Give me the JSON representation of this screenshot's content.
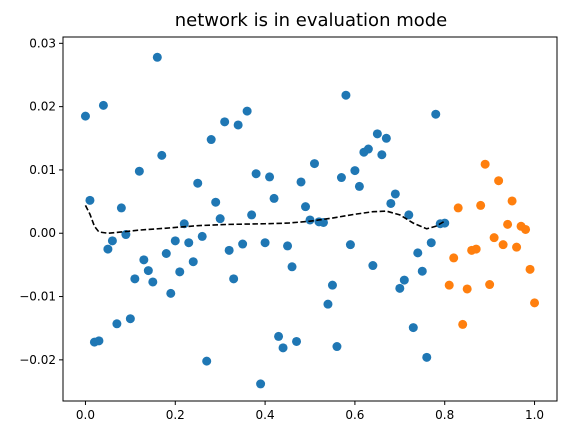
{
  "chart_data": {
    "type": "scatter",
    "title": "network is in evaluation mode",
    "xlabel": "",
    "ylabel": "",
    "xlim": [
      -0.05,
      1.05
    ],
    "ylim": [
      -0.0265,
      0.031
    ],
    "grid": false,
    "xticks": [
      0.0,
      0.2,
      0.4,
      0.6,
      0.8,
      1.0
    ],
    "xtick_labels": [
      "0.0",
      "0.2",
      "0.4",
      "0.6",
      "0.8",
      "1.0"
    ],
    "yticks": [
      -0.02,
      -0.01,
      0.0,
      0.01,
      0.02,
      0.03
    ],
    "ytick_labels": [
      "−0.02",
      "−0.01",
      "0.00",
      "0.01",
      "0.02",
      "0.03"
    ],
    "series": [
      {
        "kind": "scatter",
        "color": "#1f77b4",
        "x": [
          0.0,
          0.01,
          0.02,
          0.03,
          0.04,
          0.05,
          0.06,
          0.07,
          0.08,
          0.09,
          0.1,
          0.11,
          0.12,
          0.13,
          0.14,
          0.15,
          0.16,
          0.17,
          0.18,
          0.19,
          0.2,
          0.21,
          0.22,
          0.23,
          0.24,
          0.25,
          0.26,
          0.27,
          0.28,
          0.29,
          0.3,
          0.31,
          0.32,
          0.33,
          0.34,
          0.35,
          0.36,
          0.37,
          0.38,
          0.39,
          0.4,
          0.41,
          0.42,
          0.43,
          0.44,
          0.45,
          0.46,
          0.47,
          0.48,
          0.49,
          0.5,
          0.51,
          0.52,
          0.53,
          0.54,
          0.55,
          0.56,
          0.57,
          0.58,
          0.59,
          0.6,
          0.61,
          0.62,
          0.63,
          0.64,
          0.65,
          0.66,
          0.67,
          0.68,
          0.69,
          0.7,
          0.71,
          0.72,
          0.73,
          0.74,
          0.75,
          0.76,
          0.77,
          0.78,
          0.79,
          0.8
        ],
        "y": [
          0.0185,
          0.0052,
          -0.0172,
          -0.017,
          0.0202,
          -0.0025,
          -0.0012,
          -0.0143,
          0.004,
          -0.0002,
          -0.0135,
          -0.0072,
          0.0098,
          -0.0042,
          -0.0059,
          -0.0077,
          0.0278,
          0.0123,
          -0.0032,
          -0.0095,
          -0.0012,
          -0.0061,
          0.0015,
          -0.0015,
          -0.0045,
          0.0079,
          -0.0005,
          -0.0202,
          0.0148,
          0.0049,
          0.0023,
          0.0176,
          -0.0027,
          -0.0072,
          0.0171,
          -0.0017,
          0.0193,
          0.0029,
          0.0094,
          -0.0238,
          -0.0015,
          0.0089,
          0.0055,
          -0.0163,
          -0.0181,
          -0.002,
          -0.0053,
          -0.0171,
          0.0081,
          0.0042,
          0.0021,
          0.011,
          0.0018,
          0.0017,
          -0.0112,
          -0.0082,
          -0.0179,
          0.0088,
          0.0218,
          -0.0018,
          0.0099,
          0.0074,
          0.0128,
          0.0133,
          -0.0051,
          0.0157,
          0.0124,
          0.015,
          0.0047,
          0.0062,
          -0.0087,
          -0.0074,
          0.0029,
          -0.0149,
          -0.0031,
          -0.006,
          -0.0196,
          -0.0015,
          0.0188,
          0.0015,
          0.0016
        ]
      },
      {
        "kind": "scatter",
        "color": "#ff7f0e",
        "x": [
          0.81,
          0.82,
          0.83,
          0.84,
          0.85,
          0.86,
          0.87,
          0.88,
          0.89,
          0.9,
          0.91,
          0.92,
          0.93,
          0.94,
          0.95,
          0.96,
          0.97,
          0.98,
          0.99,
          1.0
        ],
        "y": [
          -0.0082,
          -0.0039,
          0.004,
          -0.0144,
          -0.0088,
          -0.0027,
          -0.0025,
          0.0044,
          0.0109,
          -0.0081,
          -0.0007,
          0.0083,
          -0.0018,
          0.0014,
          0.0051,
          -0.0022,
          0.0011,
          0.0006,
          -0.0057,
          -0.011
        ]
      },
      {
        "kind": "line",
        "style": "dashed",
        "color": "#000000",
        "x": [
          0.0,
          0.01,
          0.02,
          0.03,
          0.05,
          0.08,
          0.12,
          0.18,
          0.25,
          0.32,
          0.4,
          0.45,
          0.5,
          0.55,
          0.6,
          0.64,
          0.67,
          0.7,
          0.73,
          0.76,
          0.78,
          0.8
        ],
        "y": [
          0.0044,
          0.003,
          0.0011,
          0.0002,
          0.0,
          0.0002,
          0.0005,
          0.0008,
          0.0012,
          0.0014,
          0.0015,
          0.0016,
          0.0019,
          0.0024,
          0.003,
          0.0034,
          0.0035,
          0.0029,
          0.0016,
          0.0007,
          0.0011,
          0.0019
        ]
      }
    ]
  }
}
